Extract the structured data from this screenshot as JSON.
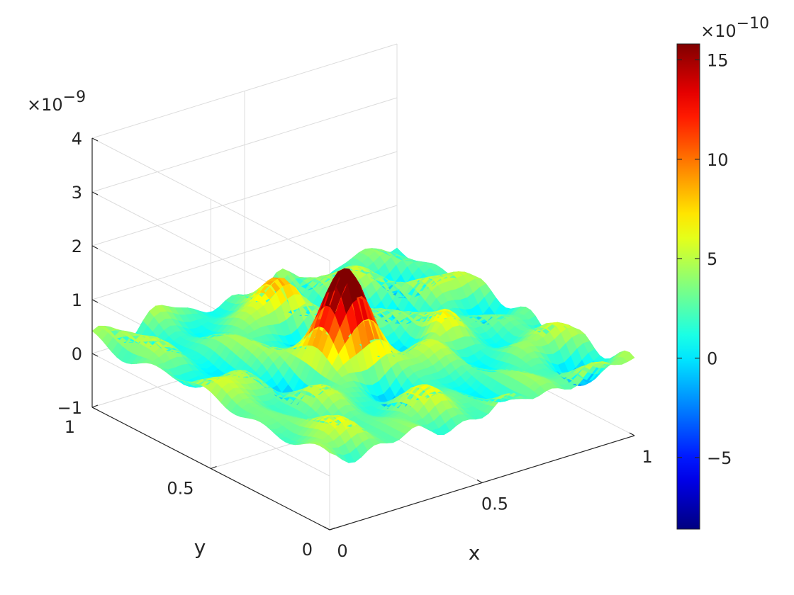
{
  "chart_data": {
    "type": "surface",
    "xlabel": "x",
    "ylabel": "y",
    "zlabel": "",
    "xlim": [
      0,
      1
    ],
    "ylim": [
      0,
      1
    ],
    "zlim": [
      -1,
      4
    ],
    "x_ticks": [
      0,
      0.5,
      1
    ],
    "y_ticks": [
      0,
      0.5,
      1
    ],
    "z_ticks": [
      -1,
      0,
      1,
      2,
      3,
      4
    ],
    "x_tick_labels": [
      "0",
      "0.5",
      "1"
    ],
    "y_tick_labels": [
      "0",
      "0.5",
      "1"
    ],
    "z_tick_labels": [
      "−1",
      "0",
      "1",
      "2",
      "3",
      "4"
    ],
    "z_exponent_base": "×10",
    "z_exponent_power": "−9",
    "surface": {
      "baseline": 2.5e-10,
      "noise_amplitude": 4e-10,
      "peaks": [
        {
          "x": 0.42,
          "y": 0.48,
          "height": 1.55e-09,
          "width": 0.06
        },
        {
          "x": 0.47,
          "y": 0.82,
          "height": 5e-10,
          "width": 0.05
        },
        {
          "x": 0.72,
          "y": 0.45,
          "height": 4e-10,
          "width": 0.04
        }
      ]
    },
    "colorbar": {
      "colormap": "jet",
      "limits": [
        -8.6e-10,
        1.58e-09
      ],
      "ticks": [
        -5,
        0,
        5,
        10,
        15
      ],
      "tick_labels": [
        "−5",
        "0",
        "5",
        "10",
        "15"
      ],
      "exponent_base": "×10",
      "exponent_power": "−10"
    },
    "grid": true,
    "view": "3d-perspective"
  }
}
